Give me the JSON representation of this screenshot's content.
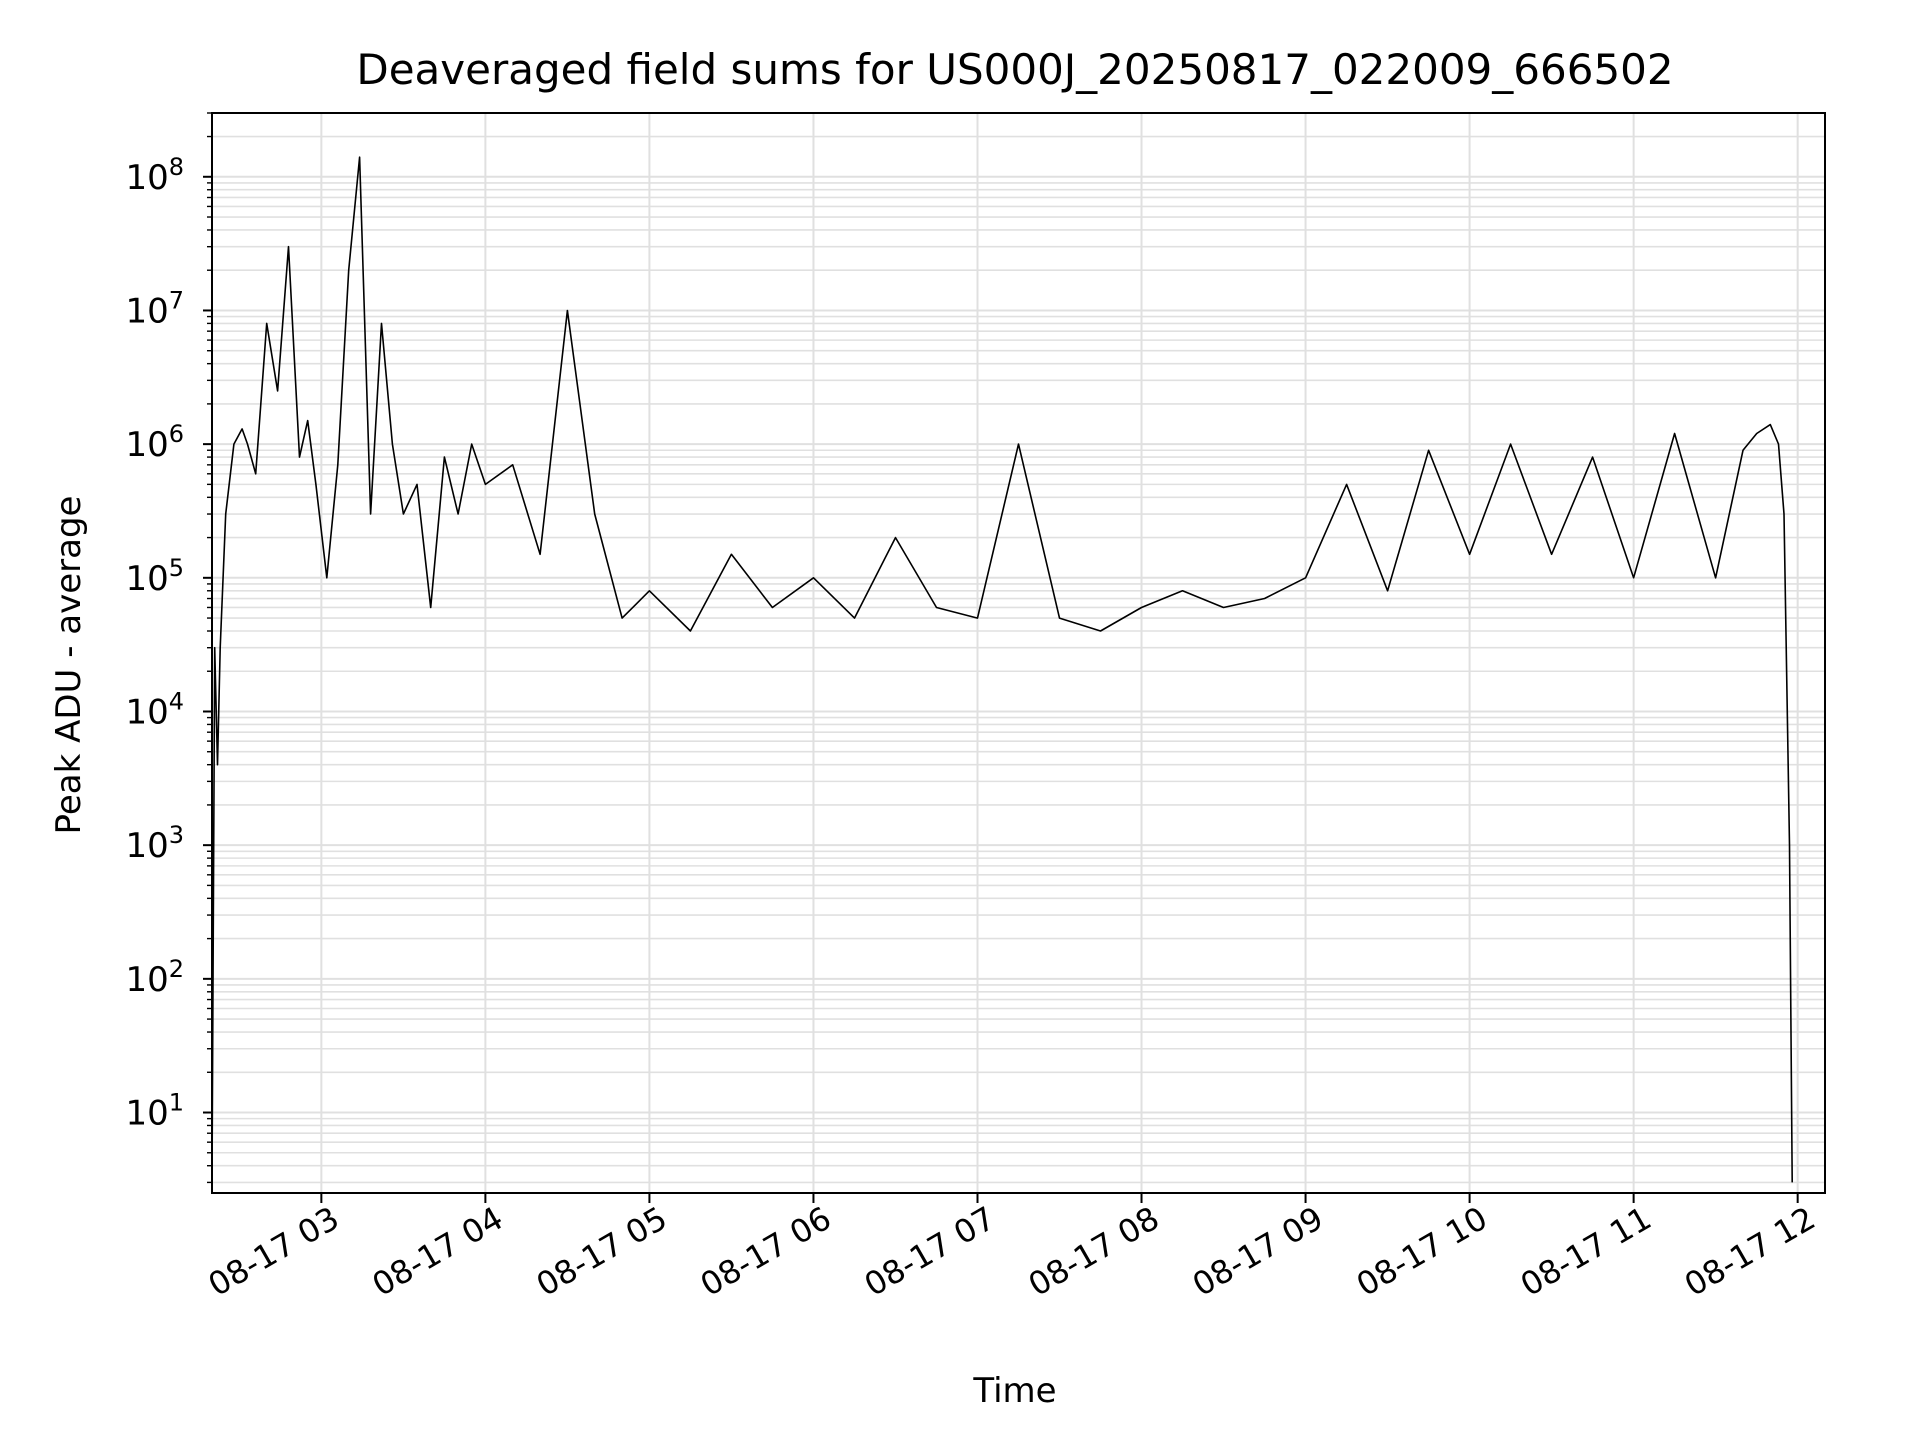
{
  "chart_data": {
    "type": "line",
    "title": "Deaveraged field sums for US000J_20250817_022009_666502",
    "xlabel": "Time",
    "ylabel": "Peak ADU - average",
    "xscale": "time",
    "yscale": "log",
    "xlim": [
      "2025-08-17 02:20",
      "2025-08-17 12:10"
    ],
    "ylim": [
      2.5,
      300000000
    ],
    "grid": true,
    "line_color": "#000000",
    "grid_color": "#e0e0e0",
    "x_ticks": [
      "2025-08-17 03:00",
      "2025-08-17 04:00",
      "2025-08-17 05:00",
      "2025-08-17 06:00",
      "2025-08-17 07:00",
      "2025-08-17 08:00",
      "2025-08-17 09:00",
      "2025-08-17 10:00",
      "2025-08-17 11:00",
      "2025-08-17 12:00"
    ],
    "x_tick_labels": [
      "08-17 03",
      "08-17 04",
      "08-17 05",
      "08-17 06",
      "08-17 07",
      "08-17 08",
      "08-17 09",
      "08-17 10",
      "08-17 11",
      "08-17 12"
    ],
    "y_ticks": [
      10,
      100,
      1000,
      10000,
      100000,
      1000000,
      10000000,
      100000000
    ],
    "y_tick_bases": [
      "10",
      "10",
      "10",
      "10",
      "10",
      "10",
      "10",
      "10"
    ],
    "y_tick_exponents": [
      "1",
      "2",
      "3",
      "4",
      "5",
      "6",
      "7",
      "8"
    ],
    "series": [
      {
        "x": [
          "2025-08-17 02:20",
          "2025-08-17 02:21",
          "2025-08-17 02:22",
          "2025-08-17 02:23",
          "2025-08-17 02:25",
          "2025-08-17 02:28",
          "2025-08-17 02:31",
          "2025-08-17 02:33",
          "2025-08-17 02:36",
          "2025-08-17 02:40",
          "2025-08-17 02:44",
          "2025-08-17 02:48",
          "2025-08-17 02:52",
          "2025-08-17 02:55",
          "2025-08-17 02:58",
          "2025-08-17 03:02",
          "2025-08-17 03:06",
          "2025-08-17 03:10",
          "2025-08-17 03:14",
          "2025-08-17 03:18",
          "2025-08-17 03:22",
          "2025-08-17 03:26",
          "2025-08-17 03:30",
          "2025-08-17 03:35",
          "2025-08-17 03:40",
          "2025-08-17 03:45",
          "2025-08-17 03:50",
          "2025-08-17 03:55",
          "2025-08-17 04:00",
          "2025-08-17 04:10",
          "2025-08-17 04:20",
          "2025-08-17 04:30",
          "2025-08-17 04:40",
          "2025-08-17 04:50",
          "2025-08-17 05:00",
          "2025-08-17 05:15",
          "2025-08-17 05:30",
          "2025-08-17 05:45",
          "2025-08-17 06:00",
          "2025-08-17 06:15",
          "2025-08-17 06:30",
          "2025-08-17 06:45",
          "2025-08-17 07:00",
          "2025-08-17 07:15",
          "2025-08-17 07:30",
          "2025-08-17 07:45",
          "2025-08-17 08:00",
          "2025-08-17 08:15",
          "2025-08-17 08:30",
          "2025-08-17 08:45",
          "2025-08-17 09:00",
          "2025-08-17 09:15",
          "2025-08-17 09:30",
          "2025-08-17 09:45",
          "2025-08-17 10:00",
          "2025-08-17 10:15",
          "2025-08-17 10:30",
          "2025-08-17 10:45",
          "2025-08-17 11:00",
          "2025-08-17 11:15",
          "2025-08-17 11:30",
          "2025-08-17 11:40",
          "2025-08-17 11:45",
          "2025-08-17 11:50",
          "2025-08-17 11:53",
          "2025-08-17 11:55",
          "2025-08-17 11:57",
          "2025-08-17 11:58"
        ],
        "y": [
          3,
          30000,
          4000,
          30000,
          300000,
          1000000,
          1300000,
          1000000,
          600000,
          8000000,
          2500000,
          30000000,
          800000,
          1500000,
          500000,
          100000,
          700000,
          20000000,
          140000000,
          300000,
          8000000,
          1000000,
          300000,
          500000,
          60000,
          800000,
          300000,
          1000000,
          500000,
          700000,
          150000,
          10000000,
          300000,
          50000,
          80000,
          40000,
          150000,
          60000,
          100000,
          50000,
          200000,
          60000,
          50000,
          1000000,
          50000,
          40000,
          60000,
          80000,
          60000,
          70000,
          100000,
          500000,
          80000,
          900000,
          150000,
          1000000,
          150000,
          800000,
          100000,
          1200000,
          100000,
          900000,
          1200000,
          1400000,
          1000000,
          300000,
          1000,
          3
        ]
      }
    ]
  }
}
